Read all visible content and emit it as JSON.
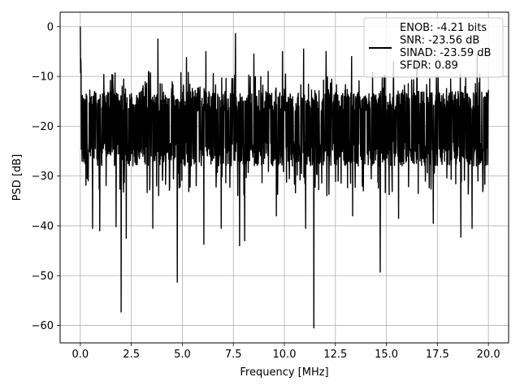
{
  "chart_data": {
    "type": "line",
    "xlabel": "Frequency [MHz]",
    "ylabel": "PSD [dB]",
    "xlim": [
      -0.99,
      20.99
    ],
    "ylim": [
      -63.5,
      2.9
    ],
    "x_ticks": [
      0.0,
      2.5,
      5.0,
      7.5,
      10.0,
      12.5,
      15.0,
      17.5,
      20.0
    ],
    "x_tick_labels": [
      "0.0",
      "2.5",
      "5.0",
      "7.5",
      "10.0",
      "12.5",
      "15.0",
      "17.5",
      "20.0"
    ],
    "y_ticks": [
      0,
      -10,
      -20,
      -30,
      -40,
      -50,
      -60
    ],
    "y_tick_labels": [
      "0",
      "−10",
      "−20",
      "−30",
      "−40",
      "−50",
      "−60"
    ],
    "grid": true,
    "legend_position": "top-right",
    "series_color": "#000000",
    "legend": {
      "lines": [
        "ENOB: -4.21 bits",
        "SNR: -23.56 dB",
        "SINAD: -23.59 dB",
        "SFDR: 0.89"
      ]
    },
    "series": [
      {
        "x_start": 0.0,
        "x_end": 20.0,
        "noise_center": -19,
        "noise_upper_env": -13,
        "noise_lower_env": -28,
        "peak": {
          "x": 0.0,
          "y": 0.0
        },
        "dips": [
          {
            "x": 2.0,
            "y": -57.3
          },
          {
            "x": 4.75,
            "y": -51.3
          },
          {
            "x": 11.45,
            "y": -60.5
          },
          {
            "x": 14.7,
            "y": -49.3
          },
          {
            "x": 2.25,
            "y": -42.5
          },
          {
            "x": 6.05,
            "y": -43.7
          },
          {
            "x": 7.8,
            "y": -44.0
          },
          {
            "x": 18.65,
            "y": -42.3
          },
          {
            "x": 0.6,
            "y": -40.5
          },
          {
            "x": 0.95,
            "y": -41.0
          },
          {
            "x": 1.75,
            "y": -40.2
          },
          {
            "x": 3.55,
            "y": -40.5
          },
          {
            "x": 6.9,
            "y": -40.5
          },
          {
            "x": 8.05,
            "y": -43.0
          },
          {
            "x": 11.05,
            "y": -40.5
          },
          {
            "x": 13.35,
            "y": -38.0
          },
          {
            "x": 17.3,
            "y": -39.5
          },
          {
            "x": 19.2,
            "y": -40.5
          },
          {
            "x": 15.6,
            "y": -38.5
          },
          {
            "x": 9.6,
            "y": -38.0
          }
        ],
        "spikes": [
          {
            "x": 3.8,
            "y": -2.5
          },
          {
            "x": 5.2,
            "y": -6.2
          },
          {
            "x": 7.6,
            "y": -1.4
          },
          {
            "x": 6.15,
            "y": -5.0
          },
          {
            "x": 8.5,
            "y": -5.5
          },
          {
            "x": 9.9,
            "y": -5.0
          },
          {
            "x": 10.95,
            "y": -4.5
          },
          {
            "x": 12.05,
            "y": -5.0
          },
          {
            "x": 13.3,
            "y": -6.0
          },
          {
            "x": 15.35,
            "y": -7.0
          },
          {
            "x": 16.5,
            "y": -7.0
          },
          {
            "x": 19.45,
            "y": -5.5
          }
        ]
      }
    ]
  }
}
